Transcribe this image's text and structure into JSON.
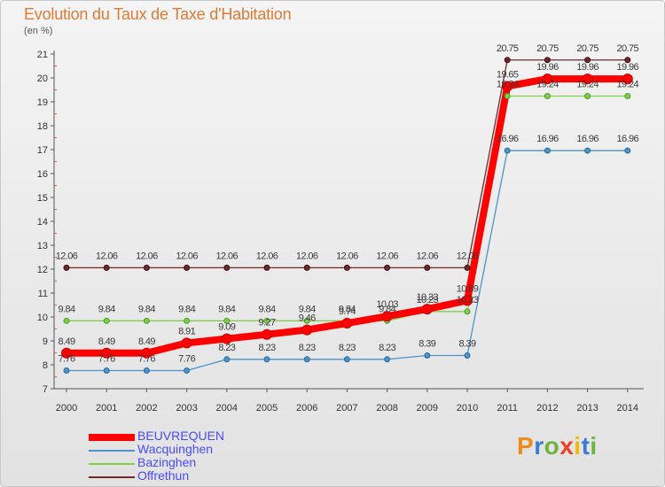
{
  "title": "Evolution du Taux de Taxe d'Habitation",
  "subtitle": "(en %)",
  "logo": {
    "text": "Proxiti",
    "letter_colors": [
      "#f08a1c",
      "#3a7bd5",
      "#6db33f",
      "#e8402a",
      "#f5b800",
      "#3a7bd5",
      "#6db33f"
    ]
  },
  "chart_data": {
    "type": "line",
    "x": [
      "2000",
      "2001",
      "2002",
      "2003",
      "2004",
      "2005",
      "2006",
      "2007",
      "2008",
      "2009",
      "2010",
      "2011",
      "2012",
      "2013",
      "2014"
    ],
    "ylim": [
      7,
      21
    ],
    "yticks": [
      "7",
      "8",
      "9",
      "10",
      "11",
      "12",
      "13",
      "14",
      "15",
      "16",
      "17",
      "18",
      "19",
      "20",
      "21"
    ],
    "grid": false,
    "legend_position": "bottom-left",
    "series": [
      {
        "name": "BEUVREQUEN",
        "color": "#ff0000",
        "values": [
          8.49,
          8.49,
          8.49,
          8.91,
          9.09,
          9.27,
          9.46,
          9.74,
          10.03,
          10.33,
          10.69,
          19.65,
          19.96,
          19.96,
          19.96
        ],
        "labels": [
          "8.49",
          "8.49",
          "8.49",
          "8.91",
          "9.09",
          "9.27",
          "9.46",
          "9.74",
          "10.03",
          "10.33",
          "10.69",
          "19.65",
          "19.96",
          "19.96",
          "19.96"
        ]
      },
      {
        "name": "Wacquinghen",
        "color": "#4b93c8",
        "values": [
          7.76,
          7.76,
          7.76,
          7.76,
          8.23,
          8.23,
          8.23,
          8.23,
          8.23,
          8.39,
          8.39,
          16.96,
          16.96,
          16.96,
          16.96
        ],
        "labels": [
          "7.76",
          "7.76",
          "7.76",
          "7.76",
          "8.23",
          "8.23",
          "8.23",
          "8.23",
          "8.23",
          "8.39",
          "8.39",
          "16.96",
          "16.96",
          "16.96",
          "16.96"
        ]
      },
      {
        "name": "Bazinghen",
        "color": "#7fcf4a",
        "values": [
          9.84,
          9.84,
          9.84,
          9.84,
          9.84,
          9.84,
          9.84,
          9.84,
          9.84,
          10.23,
          10.23,
          19.24,
          19.24,
          19.24,
          19.24
        ],
        "labels": [
          "9.84",
          "9.84",
          "9.84",
          "9.84",
          "9.84",
          "9.84",
          "9.84",
          "9.84",
          "9.84",
          "10.23",
          "10.23",
          "19.24",
          "19.24",
          "19.24",
          "19.24"
        ]
      },
      {
        "name": "Offrethun",
        "color": "#6e2a2a",
        "values": [
          12.06,
          12.06,
          12.06,
          12.06,
          12.06,
          12.06,
          12.06,
          12.06,
          12.06,
          12.06,
          12.06,
          20.75,
          20.75,
          20.75,
          20.75
        ],
        "labels": [
          "12.06",
          "12.06",
          "12.06",
          "12.06",
          "12.06",
          "12.06",
          "12.06",
          "12.06",
          "12.06",
          "12.06",
          "12.06",
          "20.75",
          "20.75",
          "20.75",
          "20.75"
        ]
      }
    ]
  }
}
